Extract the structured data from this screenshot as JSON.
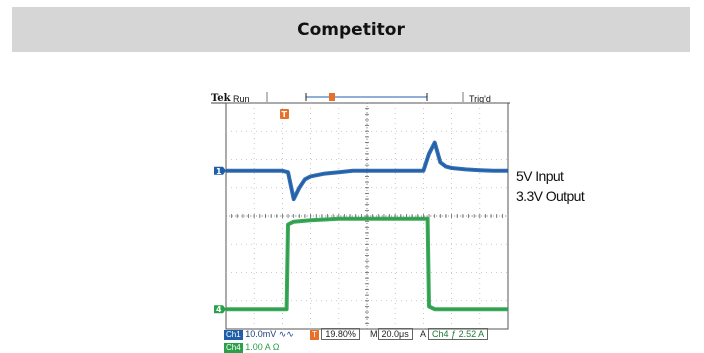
{
  "banner": {
    "title": "Competitor"
  },
  "scope": {
    "header_brand": "Tek",
    "header_state": "Run",
    "header_trigger": "Trig'd",
    "channel_markers": {
      "ch1": "1",
      "ch4": "4"
    },
    "trigger_marker": "T"
  },
  "side_labels": {
    "line1": "5V Input",
    "line2": "3.3V Output"
  },
  "status": {
    "ch1_label": "Ch1",
    "ch1_scale": "10.0mV",
    "ch1_coupling": "∿∿",
    "trigger_position": "19.80%",
    "timebase_prefix": "M",
    "timebase": "20.0μs",
    "acq_prefix": "A",
    "trig_source": "Ch4",
    "trig_slope": "ƒ",
    "trig_level": "2.52 A",
    "ch4_label": "Ch4",
    "ch4_scale": "1.00 A Ω"
  },
  "colors": {
    "ch1": "#1f5fa8",
    "ch4": "#2aa04a",
    "trigger": "#e8702a",
    "banner_bg": "#d6d6d6"
  },
  "chart_data": {
    "type": "line",
    "title": "",
    "xlabel": "",
    "ylabel": "",
    "x_divisions": 10,
    "y_divisions": 8,
    "grid": true,
    "series": [
      {
        "name": "Ch1",
        "x": [
          0,
          0.5,
          1.0,
          1.5,
          2.0,
          2.2,
          2.4,
          2.6,
          2.8,
          3.0,
          3.5,
          4.0,
          4.5,
          5.0,
          5.5,
          6.0,
          6.5,
          7.0,
          7.2,
          7.4,
          7.6,
          7.8,
          8.0,
          8.5,
          9.0,
          9.5,
          10.0
        ],
        "y": [
          5.6,
          5.6,
          5.6,
          5.6,
          5.6,
          5.55,
          4.6,
          5.0,
          5.3,
          5.4,
          5.5,
          5.55,
          5.6,
          5.6,
          5.6,
          5.6,
          5.6,
          5.6,
          6.2,
          6.6,
          5.9,
          5.75,
          5.7,
          5.65,
          5.62,
          5.6,
          5.6
        ]
      },
      {
        "name": "Ch4",
        "x": [
          0,
          0.5,
          1.0,
          1.5,
          2.0,
          2.15,
          2.2,
          2.4,
          3.0,
          4.0,
          5.0,
          6.0,
          7.0,
          7.15,
          7.2,
          7.4,
          8.0,
          9.0,
          10.0
        ],
        "y": [
          0.7,
          0.7,
          0.7,
          0.7,
          0.7,
          0.7,
          3.7,
          3.8,
          3.85,
          3.9,
          3.9,
          3.9,
          3.9,
          3.9,
          0.8,
          0.7,
          0.7,
          0.7,
          0.7
        ]
      }
    ]
  }
}
